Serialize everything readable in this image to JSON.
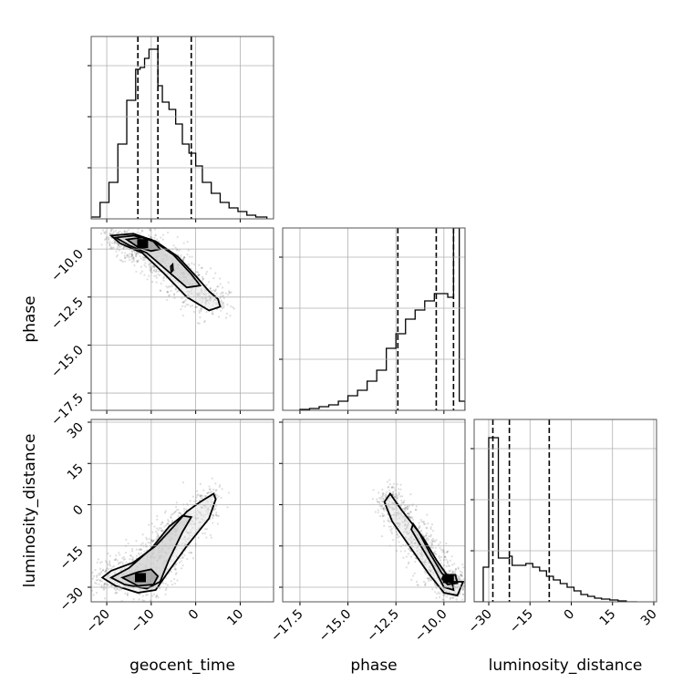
{
  "chart_data": {
    "type": "scatter",
    "parameters": [
      "geocent_time",
      "phase",
      "luminosity_distance"
    ],
    "axis_labels": {
      "geocent_time": "geocent_time",
      "phase": "phase",
      "luminosity_distance": "luminosity_distance"
    },
    "ranges": {
      "geocent_time": [
        -23.5,
        17.5
      ],
      "phase": [
        -18.4,
        -8.9
      ],
      "luminosity_distance": [
        -35.3,
        31.0
      ]
    },
    "ticks": {
      "geocent_time": [
        {
          "v": -20,
          "label": "−20"
        },
        {
          "v": -10,
          "label": "−10"
        },
        {
          "v": 0,
          "label": "0"
        },
        {
          "v": 10,
          "label": "10"
        }
      ],
      "phase": [
        {
          "v": -17.5,
          "label": "−17.5"
        },
        {
          "v": -15.0,
          "label": "−15.0"
        },
        {
          "v": -12.5,
          "label": "−12.5"
        },
        {
          "v": -10.0,
          "label": "−10.0"
        }
      ],
      "luminosity_distance": [
        {
          "v": -30,
          "label": "−30"
        },
        {
          "v": -15,
          "label": "−15"
        },
        {
          "v": 0,
          "label": "0"
        },
        {
          "v": 15,
          "label": "15"
        },
        {
          "v": 30,
          "label": "30"
        }
      ]
    },
    "quantiles": {
      "geocent_time": [
        -13.0,
        -8.5,
        -1.0
      ],
      "phase": [
        -12.4,
        -10.4,
        -9.5
      ],
      "luminosity_distance": [
        -28.5,
        -22.5,
        -8.0
      ]
    },
    "histograms": {
      "geocent_time": {
        "edges": [
          -23.5,
          -21.5,
          -19.5,
          -17.5,
          -15.5,
          -13.5,
          -12.5,
          -11.5,
          -10.5,
          -9.5,
          -8.5,
          -7.5,
          -6.0,
          -4.5,
          -3.0,
          -1.5,
          0.0,
          1.5,
          3.5,
          5.5,
          7.5,
          9.5,
          11.5,
          13.5,
          16.0
        ],
        "counts": [
          0.01,
          0.09,
          0.2,
          0.41,
          0.65,
          0.82,
          0.83,
          0.88,
          0.93,
          0.93,
          0.73,
          0.64,
          0.6,
          0.52,
          0.41,
          0.36,
          0.29,
          0.2,
          0.14,
          0.09,
          0.06,
          0.04,
          0.02,
          0.01
        ]
      },
      "phase": {
        "edges": [
          -17.5,
          -17.0,
          -16.5,
          -16.0,
          -15.5,
          -15.0,
          -14.5,
          -14.0,
          -13.5,
          -13.0,
          -12.5,
          -12.0,
          -11.5,
          -11.0,
          -10.5,
          -10.0,
          -9.8,
          -9.5,
          -9.2,
          -8.9
        ],
        "counts": [
          0.005,
          0.01,
          0.02,
          0.03,
          0.05,
          0.08,
          0.11,
          0.16,
          0.22,
          0.34,
          0.42,
          0.5,
          0.55,
          0.6,
          0.64,
          0.64,
          0.62,
          1.0,
          0.05
        ]
      },
      "luminosity_distance": {
        "edges": [
          -35.3,
          -32.0,
          -30.0,
          -28.5,
          -26.5,
          -24.0,
          -22.5,
          -21.5,
          -19.5,
          -16.5,
          -14.0,
          -11.5,
          -9.0,
          -6.5,
          -4.0,
          -1.5,
          1.0,
          3.5,
          6.0,
          8.5,
          11.0,
          14.0,
          17.0,
          20.0,
          24.0
        ],
        "counts": [
          0.0,
          0.19,
          0.9,
          0.9,
          0.24,
          0.24,
          0.25,
          0.2,
          0.2,
          0.21,
          0.19,
          0.17,
          0.14,
          0.12,
          0.1,
          0.08,
          0.06,
          0.04,
          0.03,
          0.02,
          0.015,
          0.01,
          0.005,
          0.0
        ]
      }
    },
    "contours_2d": {
      "phase_vs_geocent_time": [
        {
          "level": "outer",
          "points": [
            [
              -19,
              -9.3
            ],
            [
              -14,
              -9.2
            ],
            [
              -9,
              -9.6
            ],
            [
              -4,
              -10.4
            ],
            [
              0,
              -11.4
            ],
            [
              3,
              -12.2
            ],
            [
              5,
              -12.6
            ],
            [
              5.5,
              -13.0
            ],
            [
              3,
              -13.2
            ],
            [
              -2,
              -12.5
            ],
            [
              -7,
              -11.3
            ],
            [
              -12,
              -10.2
            ],
            [
              -17,
              -9.7
            ],
            [
              -19,
              -9.3
            ]
          ]
        },
        {
          "level": "middle",
          "points": [
            [
              -18,
              -9.4
            ],
            [
              -14,
              -9.3
            ],
            [
              -10,
              -9.5
            ],
            [
              -5,
              -10.3
            ],
            [
              -1,
              -11.3
            ],
            [
              1,
              -11.9
            ],
            [
              -2,
              -12.0
            ],
            [
              -6,
              -11.2
            ],
            [
              -11,
              -10.2
            ],
            [
              -15,
              -9.8
            ],
            [
              -18,
              -9.4
            ]
          ]
        },
        {
          "level": "inner",
          "points": [
            [
              -15.5,
              -9.5
            ],
            [
              -12,
              -9.4
            ],
            [
              -9.5,
              -9.6
            ],
            [
              -8,
              -10.0
            ],
            [
              -10,
              -10.1
            ],
            [
              -13,
              -9.9
            ],
            [
              -15.5,
              -9.5
            ]
          ]
        },
        {
          "level": "inner",
          "points": [
            [
              -5.6,
              -10.9
            ],
            [
              -5.2,
              -10.8
            ],
            [
              -5.1,
              -11.1
            ],
            [
              -5.5,
              -11.2
            ],
            [
              -5.6,
              -10.9
            ]
          ]
        }
      ],
      "luminosity_distance_vs_geocent_time": [
        {
          "level": "outer",
          "points": [
            [
              -21,
              -26.5
            ],
            [
              -19,
              -24.0
            ],
            [
              -14,
              -21.0
            ],
            [
              -9,
              -15.0
            ],
            [
              -5,
              -8.0
            ],
            [
              -2,
              -2.5
            ],
            [
              1,
              1.0
            ],
            [
              4,
              4.0
            ],
            [
              4.5,
              2.0
            ],
            [
              3,
              -5.0
            ],
            [
              -2,
              -15.0
            ],
            [
              -6,
              -24.0
            ],
            [
              -9,
              -31.0
            ],
            [
              -13,
              -32.0
            ],
            [
              -18,
              -29.5
            ],
            [
              -21,
              -26.5
            ]
          ]
        },
        {
          "level": "middle",
          "points": [
            [
              -19,
              -26.5
            ],
            [
              -15,
              -23.0
            ],
            [
              -10,
              -16.0
            ],
            [
              -6,
              -8.0
            ],
            [
              -3,
              -4.0
            ],
            [
              -1,
              -4.5
            ],
            [
              -3,
              -10.0
            ],
            [
              -6,
              -20.0
            ],
            [
              -8,
              -28.0
            ],
            [
              -11,
              -30.5
            ],
            [
              -16,
              -29.0
            ],
            [
              -19,
              -26.5
            ]
          ]
        },
        {
          "level": "inner",
          "points": [
            [
              -16.5,
              -26.5
            ],
            [
              -13,
              -24.5
            ],
            [
              -10,
              -23.5
            ],
            [
              -8.5,
              -26.0
            ],
            [
              -9.5,
              -29.0
            ],
            [
              -13,
              -29.5
            ],
            [
              -16.5,
              -26.5
            ]
          ]
        }
      ],
      "luminosity_distance_vs_phase": [
        {
          "level": "outer",
          "points": [
            [
              -12.8,
              4.0
            ],
            [
              -12.2,
              -2.0
            ],
            [
              -11.3,
              -10.0
            ],
            [
              -10.7,
              -18.0
            ],
            [
              -10.1,
              -25.0
            ],
            [
              -9.6,
              -28.0
            ],
            [
              -9.0,
              -28.0
            ],
            [
              -9.3,
              -33.0
            ],
            [
              -10.0,
              -32.0
            ],
            [
              -10.8,
              -25.0
            ],
            [
              -11.8,
              -15.0
            ],
            [
              -12.7,
              -6.0
            ],
            [
              -13.1,
              1.0
            ],
            [
              -12.8,
              4.0
            ]
          ]
        },
        {
          "level": "middle",
          "points": [
            [
              -11.6,
              -7.0
            ],
            [
              -11.0,
              -13.0
            ],
            [
              -10.4,
              -20.0
            ],
            [
              -9.9,
              -25.0
            ],
            [
              -9.6,
              -27.0
            ],
            [
              -9.5,
              -31.0
            ],
            [
              -10.0,
              -30.0
            ],
            [
              -10.6,
              -22.0
            ],
            [
              -11.2,
              -15.0
            ],
            [
              -11.7,
              -9.0
            ],
            [
              -11.6,
              -7.0
            ]
          ]
        },
        {
          "level": "inner",
          "points": [
            [
              -10.0,
              -25.5
            ],
            [
              -9.4,
              -25.5
            ],
            [
              -9.3,
              -28.5
            ],
            [
              -9.8,
              -29.0
            ],
            [
              -10.1,
              -27.0
            ],
            [
              -10.0,
              -25.5
            ]
          ]
        }
      ]
    }
  }
}
